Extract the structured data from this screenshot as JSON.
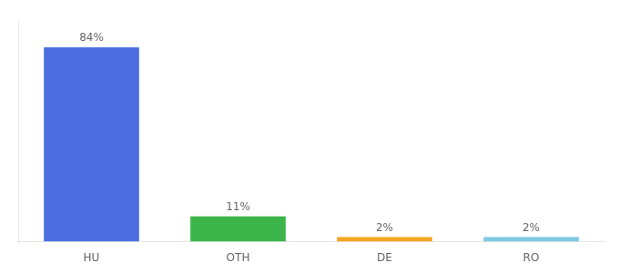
{
  "chart_data": {
    "type": "bar",
    "categories": [
      "HU",
      "OTH",
      "DE",
      "RO"
    ],
    "values": [
      84,
      11,
      2,
      2
    ],
    "value_labels": [
      "84%",
      "11%",
      "2%",
      "2%"
    ],
    "colors": [
      "#4a6ee0",
      "#3bb54a",
      "#f5a623",
      "#7ec8e3"
    ],
    "ylim": [
      0,
      95
    ],
    "data_labels": true,
    "tick_labels": "x",
    "grid": false
  }
}
